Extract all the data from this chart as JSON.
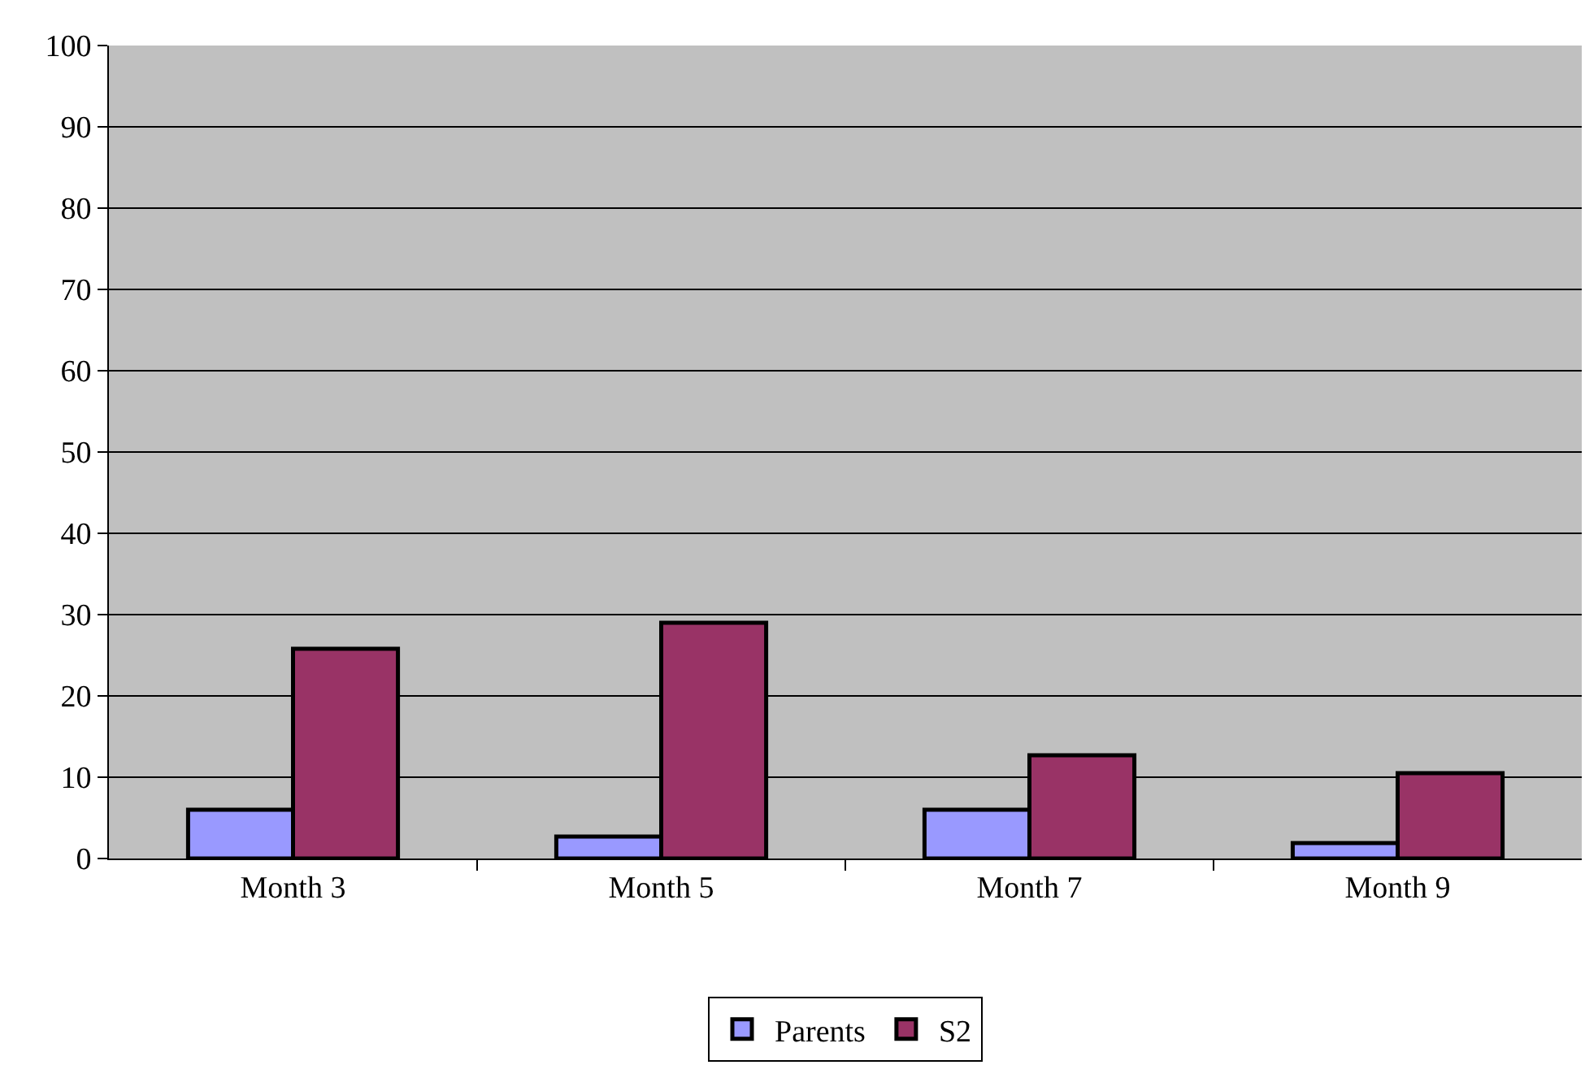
{
  "chart_data": {
    "type": "bar",
    "categories": [
      "Month 3",
      "Month 5",
      "Month 7",
      "Month 9"
    ],
    "series": [
      {
        "name": "Parents",
        "color": "#9999ff",
        "values": [
          6.0,
          2.7,
          6.0,
          1.9
        ]
      },
      {
        "name": "S2",
        "color": "#993366",
        "values": [
          25.8,
          29.0,
          12.7,
          10.5
        ]
      }
    ],
    "ylim": [
      0,
      100
    ],
    "yticks": [
      0,
      10,
      20,
      30,
      40,
      50,
      60,
      70,
      80,
      90,
      100
    ],
    "grid": "y",
    "legend": "bottom"
  }
}
